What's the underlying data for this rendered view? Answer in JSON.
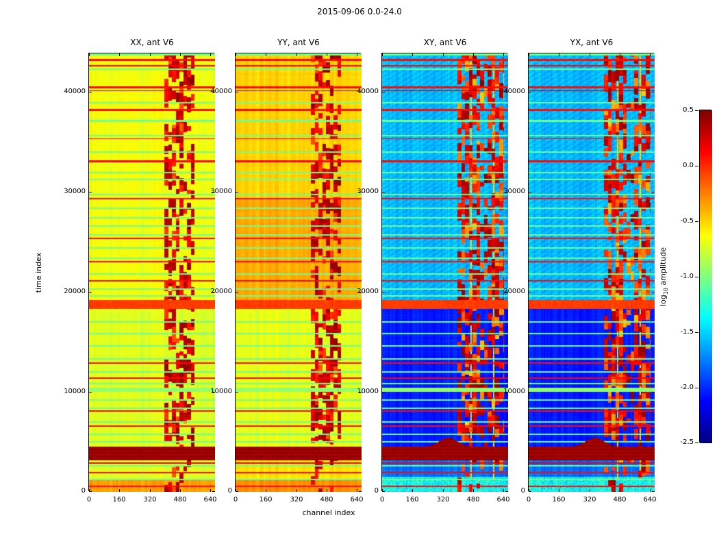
{
  "chart_data": {
    "type": "heatmap",
    "title": "2015-09-06 0.0-24.0",
    "xlabel": "channel index",
    "ylabel": "time index",
    "colorbar_label": "log10 amplitude",
    "colorbar_label_prefix": "log",
    "colorbar_label_sub": "10",
    "colorbar_label_suffix": " amplitude",
    "colormap": "jet",
    "clim": [
      -2.5,
      0.5
    ],
    "colorbar_ticks": [
      "0.5",
      "0.0",
      "-0.5",
      "-1.0",
      "-1.5",
      "-2.0",
      "-2.5"
    ],
    "xlim": [
      0,
      665
    ],
    "ylim": [
      0,
      43800
    ],
    "xticks": [
      0,
      160,
      320,
      480,
      640
    ],
    "yticks": [
      0,
      10000,
      20000,
      30000,
      40000
    ],
    "legend": "none",
    "grid": false,
    "panels": [
      {
        "title": "XX, ant V6",
        "pol": "XX",
        "cross": false,
        "base": -0.7,
        "col_noise": 0.05,
        "regions": [
          [
            0,
            1300,
            -0.35
          ],
          [
            1300,
            18300,
            -0.72
          ],
          [
            19150,
            43800,
            -0.66
          ]
        ],
        "rfi_zone": [
          398,
          558
        ],
        "rfi_v": [
          -0.15,
          0.45
        ]
      },
      {
        "title": "YY, ant V6",
        "pol": "YY",
        "cross": false,
        "base": -0.6,
        "col_noise": 0.05,
        "regions": [
          [
            0,
            1300,
            -0.3
          ],
          [
            1300,
            3150,
            -0.55
          ],
          [
            4500,
            18300,
            -0.7
          ],
          [
            19150,
            29200,
            -0.38
          ],
          [
            29200,
            43800,
            -0.5
          ]
        ],
        "rfi_zone": [
          398,
          558
        ],
        "rfi_v": [
          -0.15,
          0.45
        ]
      },
      {
        "title": "XY, ant V6",
        "pol": "XY",
        "cross": true,
        "base": -2.0,
        "col_noise": 0.07,
        "regions": [
          [
            0,
            1500,
            -1.35
          ],
          [
            1500,
            3150,
            -1.8
          ],
          [
            4500,
            18300,
            -2.05
          ],
          [
            19150,
            43800,
            -1.58
          ]
        ],
        "rfi_zone": [
          398,
          645
        ],
        "rfi_v": [
          -0.55,
          0.45
        ]
      },
      {
        "title": "YX, ant V6",
        "pol": "YX",
        "cross": true,
        "base": -2.0,
        "col_noise": 0.07,
        "regions": [
          [
            0,
            1500,
            -1.35
          ],
          [
            1500,
            3150,
            -1.8
          ],
          [
            4500,
            18300,
            -2.05
          ],
          [
            19150,
            43800,
            -1.58
          ]
        ],
        "rfi_zone": [
          398,
          645
        ],
        "rfi_v": [
          -0.55,
          0.45
        ]
      }
    ],
    "features": {
      "dark_band": [
        3150,
        4500,
        0.42
      ],
      "orange_band": [
        18300,
        19150,
        -0.05
      ],
      "green_band": [
        9990,
        10400,
        -0.95
      ],
      "cross_rfi_lines": [
        470,
        588
      ],
      "stripes": [
        [
          43700,
          -1.05,
          160
        ],
        [
          43150,
          0.1,
          150
        ],
        [
          42560,
          0.12,
          130
        ],
        [
          42200,
          -1.05,
          130
        ],
        [
          40420,
          0.1,
          170
        ],
        [
          40060,
          0.38,
          110
        ],
        [
          38860,
          -1.05,
          140
        ],
        [
          38160,
          0.1,
          200
        ],
        [
          37060,
          -1.05,
          140
        ],
        [
          35560,
          -1.05,
          140
        ],
        [
          35280,
          0.1,
          130
        ],
        [
          33930,
          -1.05,
          140
        ],
        [
          33040,
          0.12,
          190
        ],
        [
          31870,
          -1.05,
          140
        ],
        [
          31190,
          -1.05,
          140
        ],
        [
          29690,
          -1.05,
          140
        ],
        [
          29270,
          0.1,
          160
        ],
        [
          28320,
          -1.05,
          130
        ],
        [
          27360,
          -1.05,
          140
        ],
        [
          26540,
          -1.05,
          140
        ],
        [
          25650,
          -1.05,
          140
        ],
        [
          25310,
          0.1,
          150
        ],
        [
          24350,
          -1.05,
          140
        ],
        [
          23320,
          -1.05,
          140
        ],
        [
          22980,
          0.1,
          150
        ],
        [
          21750,
          -1.05,
          140
        ],
        [
          21070,
          0.1,
          170
        ],
        [
          20250,
          -1.05,
          140
        ],
        [
          19560,
          -1.05,
          140
        ],
        [
          16960,
          -1.05,
          150
        ],
        [
          15800,
          -1.05,
          150
        ],
        [
          14570,
          -1.05,
          150
        ],
        [
          13270,
          -1.05,
          150
        ],
        [
          12860,
          0.1,
          170
        ],
        [
          11970,
          -1.05,
          140
        ],
        [
          11350,
          0.12,
          160
        ],
        [
          10810,
          -1.05,
          140
        ],
        [
          9170,
          -1.05,
          140
        ],
        [
          8340,
          -1.05,
          140
        ],
        [
          8070,
          0.1,
          160
        ],
        [
          6980,
          -1.05,
          150
        ],
        [
          6570,
          0.1,
          160
        ],
        [
          5750,
          -1.05,
          140
        ],
        [
          4990,
          -1.05,
          140
        ],
        [
          2870,
          0.18,
          160
        ],
        [
          2600,
          -1.05,
          130
        ],
        [
          1920,
          0.1,
          160
        ],
        [
          1230,
          -1.05,
          140
        ],
        [
          560,
          0.1,
          150
        ]
      ]
    }
  }
}
